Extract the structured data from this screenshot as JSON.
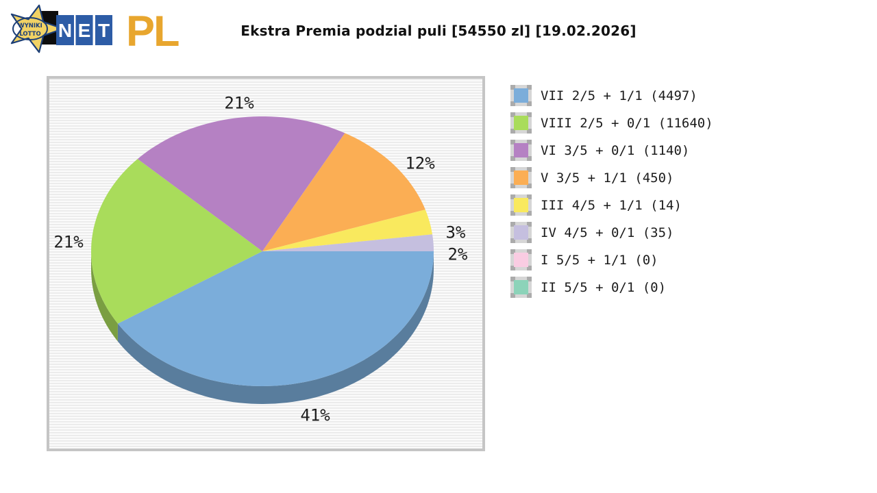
{
  "header": {
    "logo": {
      "star_line1": "WYNIKI",
      "star_line2": "LOTTO",
      "net_letters": [
        "N",
        "E",
        "T"
      ],
      "suffix": "PL",
      "star_color": "#f1d264",
      "star_outline": "#1d3f77",
      "box_color": "#2d5ca6",
      "suffix_color": "#e8a62e"
    },
    "title": "Ekstra Premia podzial puli [54550 zl] [19.02.2026]"
  },
  "chart_data": {
    "type": "pie",
    "style": "3d",
    "title": "Ekstra Premia podzial puli [54550 zl] [19.02.2026]",
    "pool": "54550 zl",
    "date": "19.02.2026",
    "label_format": "percent",
    "start_angle_deg": 0,
    "direction": "clockwise",
    "legend_position": "right",
    "slices": [
      {
        "legend": "VII 2/5 + 1/1 (4497)",
        "tier": "VII 2/5 + 1/1",
        "winners": 4497,
        "percent": 41,
        "color": "#7badda"
      },
      {
        "legend": "VIII 2/5 + 0/1 (11640)",
        "tier": "VIII 2/5 + 0/1",
        "winners": 11640,
        "percent": 21,
        "color": "#a9dc5b"
      },
      {
        "legend": "VI 3/5 + 0/1 (1140)",
        "tier": "VI 3/5 + 0/1",
        "winners": 1140,
        "percent": 21,
        "color": "#b581c3"
      },
      {
        "legend": "V 3/5 + 1/1 (450)",
        "tier": "V 3/5 + 1/1",
        "winners": 450,
        "percent": 12,
        "color": "#fbae54"
      },
      {
        "legend": "III 4/5 + 1/1 (14)",
        "tier": "III 4/5 + 1/1",
        "winners": 14,
        "percent": 3,
        "color": "#f9e95e"
      },
      {
        "legend": "IV 4/5 + 0/1 (35)",
        "tier": "IV 4/5 + 0/1",
        "winners": 35,
        "percent": 2,
        "color": "#c5bfdf"
      },
      {
        "legend": "I 5/5 + 1/1 (0)",
        "tier": "I 5/5 + 1/1",
        "winners": 0,
        "percent": 0,
        "color": "#f9cce2"
      },
      {
        "legend": "II 5/5 + 0/1 (0)",
        "tier": "II 5/5 + 0/1",
        "winners": 0,
        "percent": 0,
        "color": "#8cd3b9"
      }
    ]
  }
}
